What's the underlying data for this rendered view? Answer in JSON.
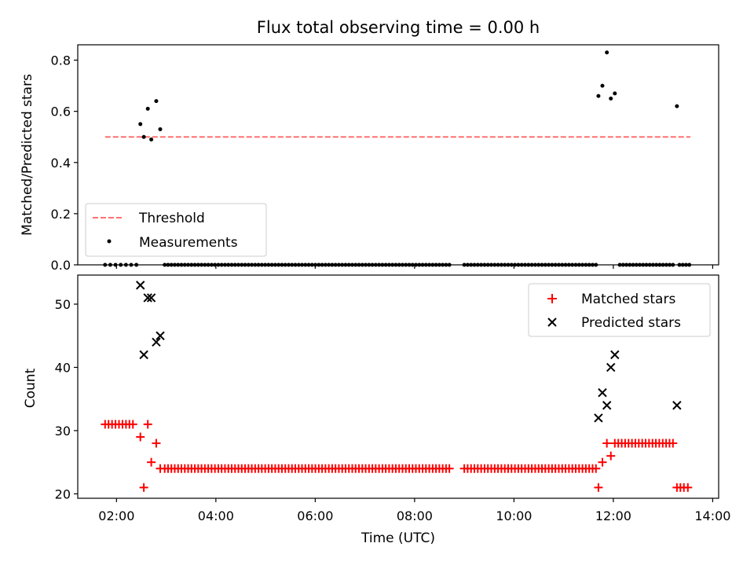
{
  "chart_data": [
    {
      "type": "scatter",
      "title": "Flux total observing time = 0.00 h",
      "xlabel": "",
      "ylabel": "Matched/Predicted stars",
      "ylim": [
        0,
        0.86
      ],
      "xlim": [
        1.22,
        14.12
      ],
      "yticks": [
        0.0,
        0.2,
        0.4,
        0.6,
        0.8
      ],
      "ytick_labels": [
        "0.0",
        "0.2",
        "0.4",
        "0.6",
        "0.8"
      ],
      "legend": {
        "placement": "lower-left",
        "entries": [
          "Threshold",
          "Measurements"
        ]
      },
      "series": [
        {
          "name": "Threshold",
          "style": "dashed-line",
          "color": "#ff7070",
          "x": [
            1.77,
            13.55
          ],
          "y": [
            0.5,
            0.5
          ]
        },
        {
          "name": "Measurements",
          "style": "dot",
          "color": "#000000",
          "points": [
            [
              2.48,
              0.55
            ],
            [
              2.55,
              0.5
            ],
            [
              2.63,
              0.61
            ],
            [
              2.7,
              0.49
            ],
            [
              2.8,
              0.64
            ],
            [
              2.88,
              0.53
            ],
            [
              11.7,
              0.66
            ],
            [
              11.78,
              0.7
            ],
            [
              11.87,
              0.83
            ],
            [
              11.95,
              0.65
            ],
            [
              12.03,
              0.67
            ],
            [
              13.28,
              0.62
            ]
          ],
          "zero_runs": [
            [
              1.77,
              2.4,
              7
            ],
            [
              2.97,
              8.7,
              86
            ],
            [
              9.0,
              11.65,
              40
            ],
            [
              12.13,
              13.2,
              17
            ],
            [
              13.33,
              13.53,
              4
            ]
          ]
        }
      ]
    },
    {
      "type": "scatter",
      "title": "",
      "xlabel": "Time (UTC)",
      "ylabel": "Count",
      "ylim": [
        19.3,
        54.6
      ],
      "xlim": [
        1.22,
        14.12
      ],
      "yticks": [
        20,
        30,
        40,
        50
      ],
      "ytick_labels": [
        "20",
        "30",
        "40",
        "50"
      ],
      "xticks": [
        2,
        4,
        6,
        8,
        10,
        12,
        14
      ],
      "xtick_labels": [
        "02:00",
        "04:00",
        "06:00",
        "08:00",
        "10:00",
        "12:00",
        "14:00"
      ],
      "legend": {
        "placement": "top-right",
        "entries": [
          "Matched stars",
          "Predicted stars"
        ]
      },
      "series": [
        {
          "name": "Matched stars",
          "style": "plus",
          "color": "#ff0000",
          "points": [
            [
              1.77,
              31
            ],
            [
              1.84,
              31
            ],
            [
              1.91,
              31
            ],
            [
              1.98,
              31
            ],
            [
              2.05,
              31
            ],
            [
              2.12,
              31
            ],
            [
              2.19,
              31
            ],
            [
              2.26,
              31
            ],
            [
              2.33,
              31
            ],
            [
              2.48,
              29
            ],
            [
              2.55,
              21
            ],
            [
              2.63,
              31
            ],
            [
              2.7,
              25
            ],
            [
              2.8,
              28
            ],
            [
              2.88,
              24
            ],
            [
              11.7,
              21
            ],
            [
              11.78,
              25
            ],
            [
              11.87,
              28
            ],
            [
              11.95,
              26
            ],
            [
              12.03,
              28
            ],
            [
              13.28,
              21
            ],
            [
              13.35,
              21
            ],
            [
              13.42,
              21
            ],
            [
              13.5,
              21
            ]
          ],
          "constant_runs": [
            [
              2.97,
              8.7,
              24,
              86
            ],
            [
              9.0,
              11.65,
              24,
              40
            ],
            [
              12.1,
              13.2,
              28,
              17
            ]
          ]
        },
        {
          "name": "Predicted stars",
          "style": "x",
          "color": "#000000",
          "points": [
            [
              2.48,
              53
            ],
            [
              2.55,
              42
            ],
            [
              2.63,
              51
            ],
            [
              2.7,
              51
            ],
            [
              2.8,
              44
            ],
            [
              2.88,
              45
            ],
            [
              11.7,
              32
            ],
            [
              11.78,
              36
            ],
            [
              11.87,
              34
            ],
            [
              11.95,
              40
            ],
            [
              12.03,
              42
            ],
            [
              13.28,
              34
            ]
          ]
        }
      ]
    }
  ]
}
